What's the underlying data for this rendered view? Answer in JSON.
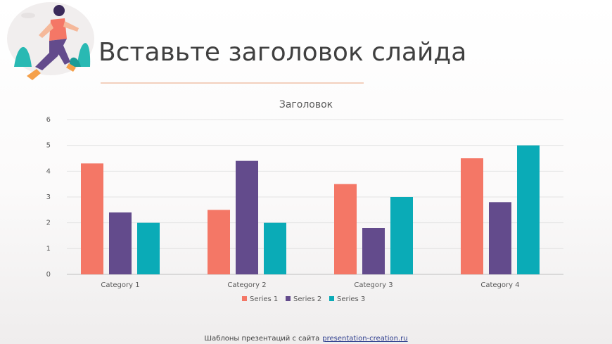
{
  "slide": {
    "title": "Вставьте заголовок слайда",
    "footer_text": "Шаблоны презентаций с сайта",
    "footer_link": "presentation-creation.ru"
  },
  "chart_data": {
    "type": "bar",
    "title": "Заголовок",
    "categories": [
      "Category 1",
      "Category 2",
      "Category 3",
      "Category 4"
    ],
    "series": [
      {
        "name": "Series 1",
        "color": "#f47766",
        "values": [
          4.3,
          2.5,
          3.5,
          4.5
        ]
      },
      {
        "name": "Series 2",
        "color": "#634b8c",
        "values": [
          2.4,
          4.4,
          1.8,
          2.8
        ]
      },
      {
        "name": "Series 3",
        "color": "#0aabb7",
        "values": [
          2,
          2,
          3,
          5
        ]
      }
    ],
    "ylim": [
      0,
      6
    ],
    "yticks": [
      0,
      1,
      2,
      3,
      4,
      5,
      6
    ],
    "grid": true,
    "legend": "bottom"
  }
}
